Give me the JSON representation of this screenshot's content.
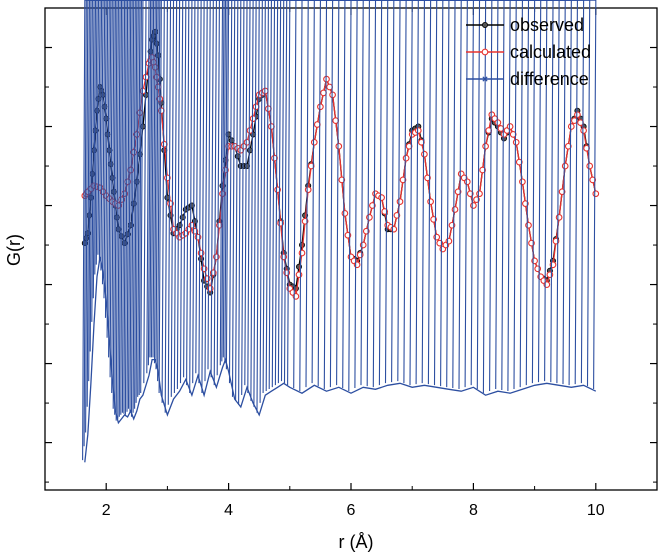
{
  "chart_data": {
    "type": "line",
    "xlabel": "r (Å)",
    "ylabel": "G(r)",
    "xlim": [
      1.0,
      11.0
    ],
    "x_ticks": [
      "2",
      "4",
      "6",
      "8",
      "10"
    ],
    "y_tick_labels": "none",
    "grid": false,
    "legend_position": "top-right",
    "series": [
      {
        "name": "observed",
        "color": "#000000",
        "marker": "filled-circle",
        "x": [
          1.65,
          1.7,
          1.75,
          1.8,
          1.85,
          1.9,
          1.95,
          2.0,
          2.05,
          2.1,
          2.15,
          2.2,
          2.3,
          2.4,
          2.5,
          2.6,
          2.7,
          2.75,
          2.8,
          2.85,
          2.9,
          3.0,
          3.1,
          3.2,
          3.3,
          3.4,
          3.5,
          3.6,
          3.7,
          3.8,
          3.9,
          4.0,
          4.1,
          4.2,
          4.3,
          4.4,
          4.5,
          4.6,
          4.7,
          4.8,
          4.9,
          5.0,
          5.1,
          5.2,
          5.3,
          5.4,
          5.5,
          5.6,
          5.7,
          5.8,
          5.9,
          6.0,
          6.1,
          6.2,
          6.3,
          6.4,
          6.5,
          6.6,
          6.7,
          6.8,
          6.9,
          7.0,
          7.1,
          7.2,
          7.3,
          7.4,
          7.5,
          7.6,
          7.7,
          7.8,
          7.9,
          8.0,
          8.1,
          8.2,
          8.3,
          8.4,
          8.5,
          8.6,
          8.7,
          8.8,
          8.9,
          9.0,
          9.1,
          9.2,
          9.3,
          9.4,
          9.5,
          9.6,
          9.7,
          9.8,
          9.9,
          10.0
        ],
        "y": [
          -0.95,
          -0.7,
          0.2,
          1.4,
          2.4,
          3.0,
          2.8,
          2.2,
          1.4,
          0.7,
          0.0,
          -0.6,
          -0.95,
          -0.5,
          0.6,
          2.0,
          3.6,
          4.2,
          4.4,
          3.8,
          2.6,
          0.2,
          -0.7,
          -0.5,
          -0.1,
          0.0,
          -0.8,
          -1.9,
          -2.2,
          -1.3,
          0.5,
          1.8,
          1.5,
          1.0,
          1.0,
          1.8,
          2.7,
          2.9,
          2.0,
          0.4,
          -1.2,
          -2.0,
          -2.1,
          -1.0,
          0.5,
          1.6,
          2.5,
          3.2,
          2.8,
          1.5,
          -0.2,
          -1.3,
          -1.4,
          -1.0,
          -0.3,
          0.3,
          0.2,
          -0.6,
          -0.6,
          0.1,
          1.2,
          1.9,
          2.0,
          1.3,
          0.1,
          -0.8,
          -1.1,
          -0.9,
          -0.1,
          0.8,
          0.6,
          0.0,
          0.3,
          1.5,
          2.2,
          2.0,
          1.7,
          2.0,
          1.6,
          0.6,
          -0.5,
          -1.4,
          -1.8,
          -1.9,
          -1.4,
          -0.3,
          1.0,
          2.0,
          2.4,
          2.0,
          1.0,
          0.3
        ]
      },
      {
        "name": "calculated",
        "color": "#e8332e",
        "marker": "open-circle",
        "x": [
          1.65,
          1.7,
          1.8,
          1.9,
          2.0,
          2.1,
          2.2,
          2.3,
          2.4,
          2.5,
          2.6,
          2.7,
          2.75,
          2.8,
          2.85,
          2.9,
          3.0,
          3.1,
          3.2,
          3.3,
          3.4,
          3.5,
          3.6,
          3.7,
          3.8,
          3.9,
          4.0,
          4.1,
          4.2,
          4.3,
          4.4,
          4.5,
          4.6,
          4.7,
          4.8,
          4.9,
          5.0,
          5.1,
          5.2,
          5.3,
          5.4,
          5.5,
          5.6,
          5.7,
          5.8,
          5.9,
          6.0,
          6.1,
          6.2,
          6.3,
          6.4,
          6.5,
          6.6,
          6.7,
          6.8,
          6.9,
          7.0,
          7.1,
          7.2,
          7.3,
          7.4,
          7.5,
          7.6,
          7.7,
          7.8,
          7.9,
          8.0,
          8.1,
          8.2,
          8.3,
          8.4,
          8.5,
          8.6,
          8.7,
          8.8,
          8.9,
          9.0,
          9.1,
          9.2,
          9.3,
          9.4,
          9.5,
          9.6,
          9.7,
          9.8,
          9.9,
          10.0
        ],
        "y": [
          0.25,
          0.35,
          0.5,
          0.45,
          0.25,
          0.1,
          0.0,
          0.3,
          0.9,
          1.8,
          2.9,
          3.6,
          3.75,
          3.5,
          3.0,
          2.4,
          0.7,
          -0.6,
          -0.8,
          -0.7,
          -0.5,
          -0.8,
          -1.6,
          -2.1,
          -1.3,
          0.3,
          1.5,
          1.5,
          1.4,
          1.6,
          2.2,
          2.8,
          2.9,
          2.0,
          0.4,
          -1.3,
          -2.1,
          -2.3,
          -1.2,
          0.4,
          1.6,
          2.5,
          3.2,
          2.8,
          1.5,
          -0.2,
          -1.3,
          -1.5,
          -1.0,
          -0.3,
          0.3,
          0.2,
          -0.5,
          -0.6,
          0.1,
          1.2,
          1.8,
          1.9,
          1.3,
          0.1,
          -0.8,
          -1.1,
          -0.9,
          -0.1,
          0.8,
          0.6,
          0.0,
          0.3,
          1.5,
          2.3,
          2.1,
          1.8,
          2.0,
          1.6,
          0.6,
          -0.5,
          -1.4,
          -1.8,
          -2.0,
          -1.5,
          -0.3,
          1.0,
          2.0,
          2.3,
          1.9,
          1.0,
          0.3
        ]
      },
      {
        "name": "difference",
        "color": "#2d4fa1",
        "marker": "x",
        "x": [
          1.65,
          1.7,
          1.75,
          1.8,
          1.85,
          1.9,
          1.95,
          2.0,
          2.05,
          2.1,
          2.15,
          2.2,
          2.25,
          2.3,
          2.35,
          2.4,
          2.45,
          2.5,
          2.55,
          2.6,
          2.7,
          2.75,
          2.8,
          2.85,
          2.9,
          3.0,
          3.1,
          3.2,
          3.3,
          3.4,
          3.5,
          3.6,
          3.7,
          3.8,
          3.9,
          3.95,
          4.0,
          4.1,
          4.2,
          4.3,
          4.4,
          4.5,
          4.6,
          4.7,
          4.8,
          4.9,
          5.0,
          5.2,
          5.4,
          5.6,
          5.8,
          6.0,
          6.2,
          6.4,
          6.6,
          6.8,
          7.0,
          7.2,
          7.4,
          7.6,
          7.8,
          8.0,
          8.2,
          8.4,
          8.6,
          8.8,
          9.0,
          9.2,
          9.4,
          9.6,
          9.8,
          10.0
        ],
        "y": [
          -6.5,
          -5.8,
          -4.5,
          -3.0,
          -1.8,
          -1.3,
          -1.7,
          -2.4,
          -3.4,
          -4.4,
          -5.2,
          -5.5,
          -5.4,
          -5.3,
          -5.35,
          -5.2,
          -5.4,
          -5.2,
          -4.9,
          -4.8,
          -4.3,
          -3.9,
          -3.9,
          -4.2,
          -4.8,
          -5.3,
          -4.9,
          -4.7,
          -4.4,
          -4.8,
          -4.3,
          -4.8,
          -4.2,
          -4.6,
          -4.1,
          -3.9,
          -4.2,
          -4.9,
          -5.1,
          -4.6,
          -5.0,
          -5.3,
          -4.8,
          -4.7,
          -4.6,
          -4.5,
          -4.6,
          -4.75,
          -4.55,
          -4.7,
          -4.6,
          -4.75,
          -4.6,
          -4.65,
          -4.55,
          -4.5,
          -4.6,
          -4.55,
          -4.6,
          -4.65,
          -4.7,
          -4.6,
          -4.8,
          -4.7,
          -4.75,
          -4.65,
          -4.55,
          -4.5,
          -4.55,
          -4.6,
          -4.55,
          -4.7
        ]
      }
    ]
  }
}
